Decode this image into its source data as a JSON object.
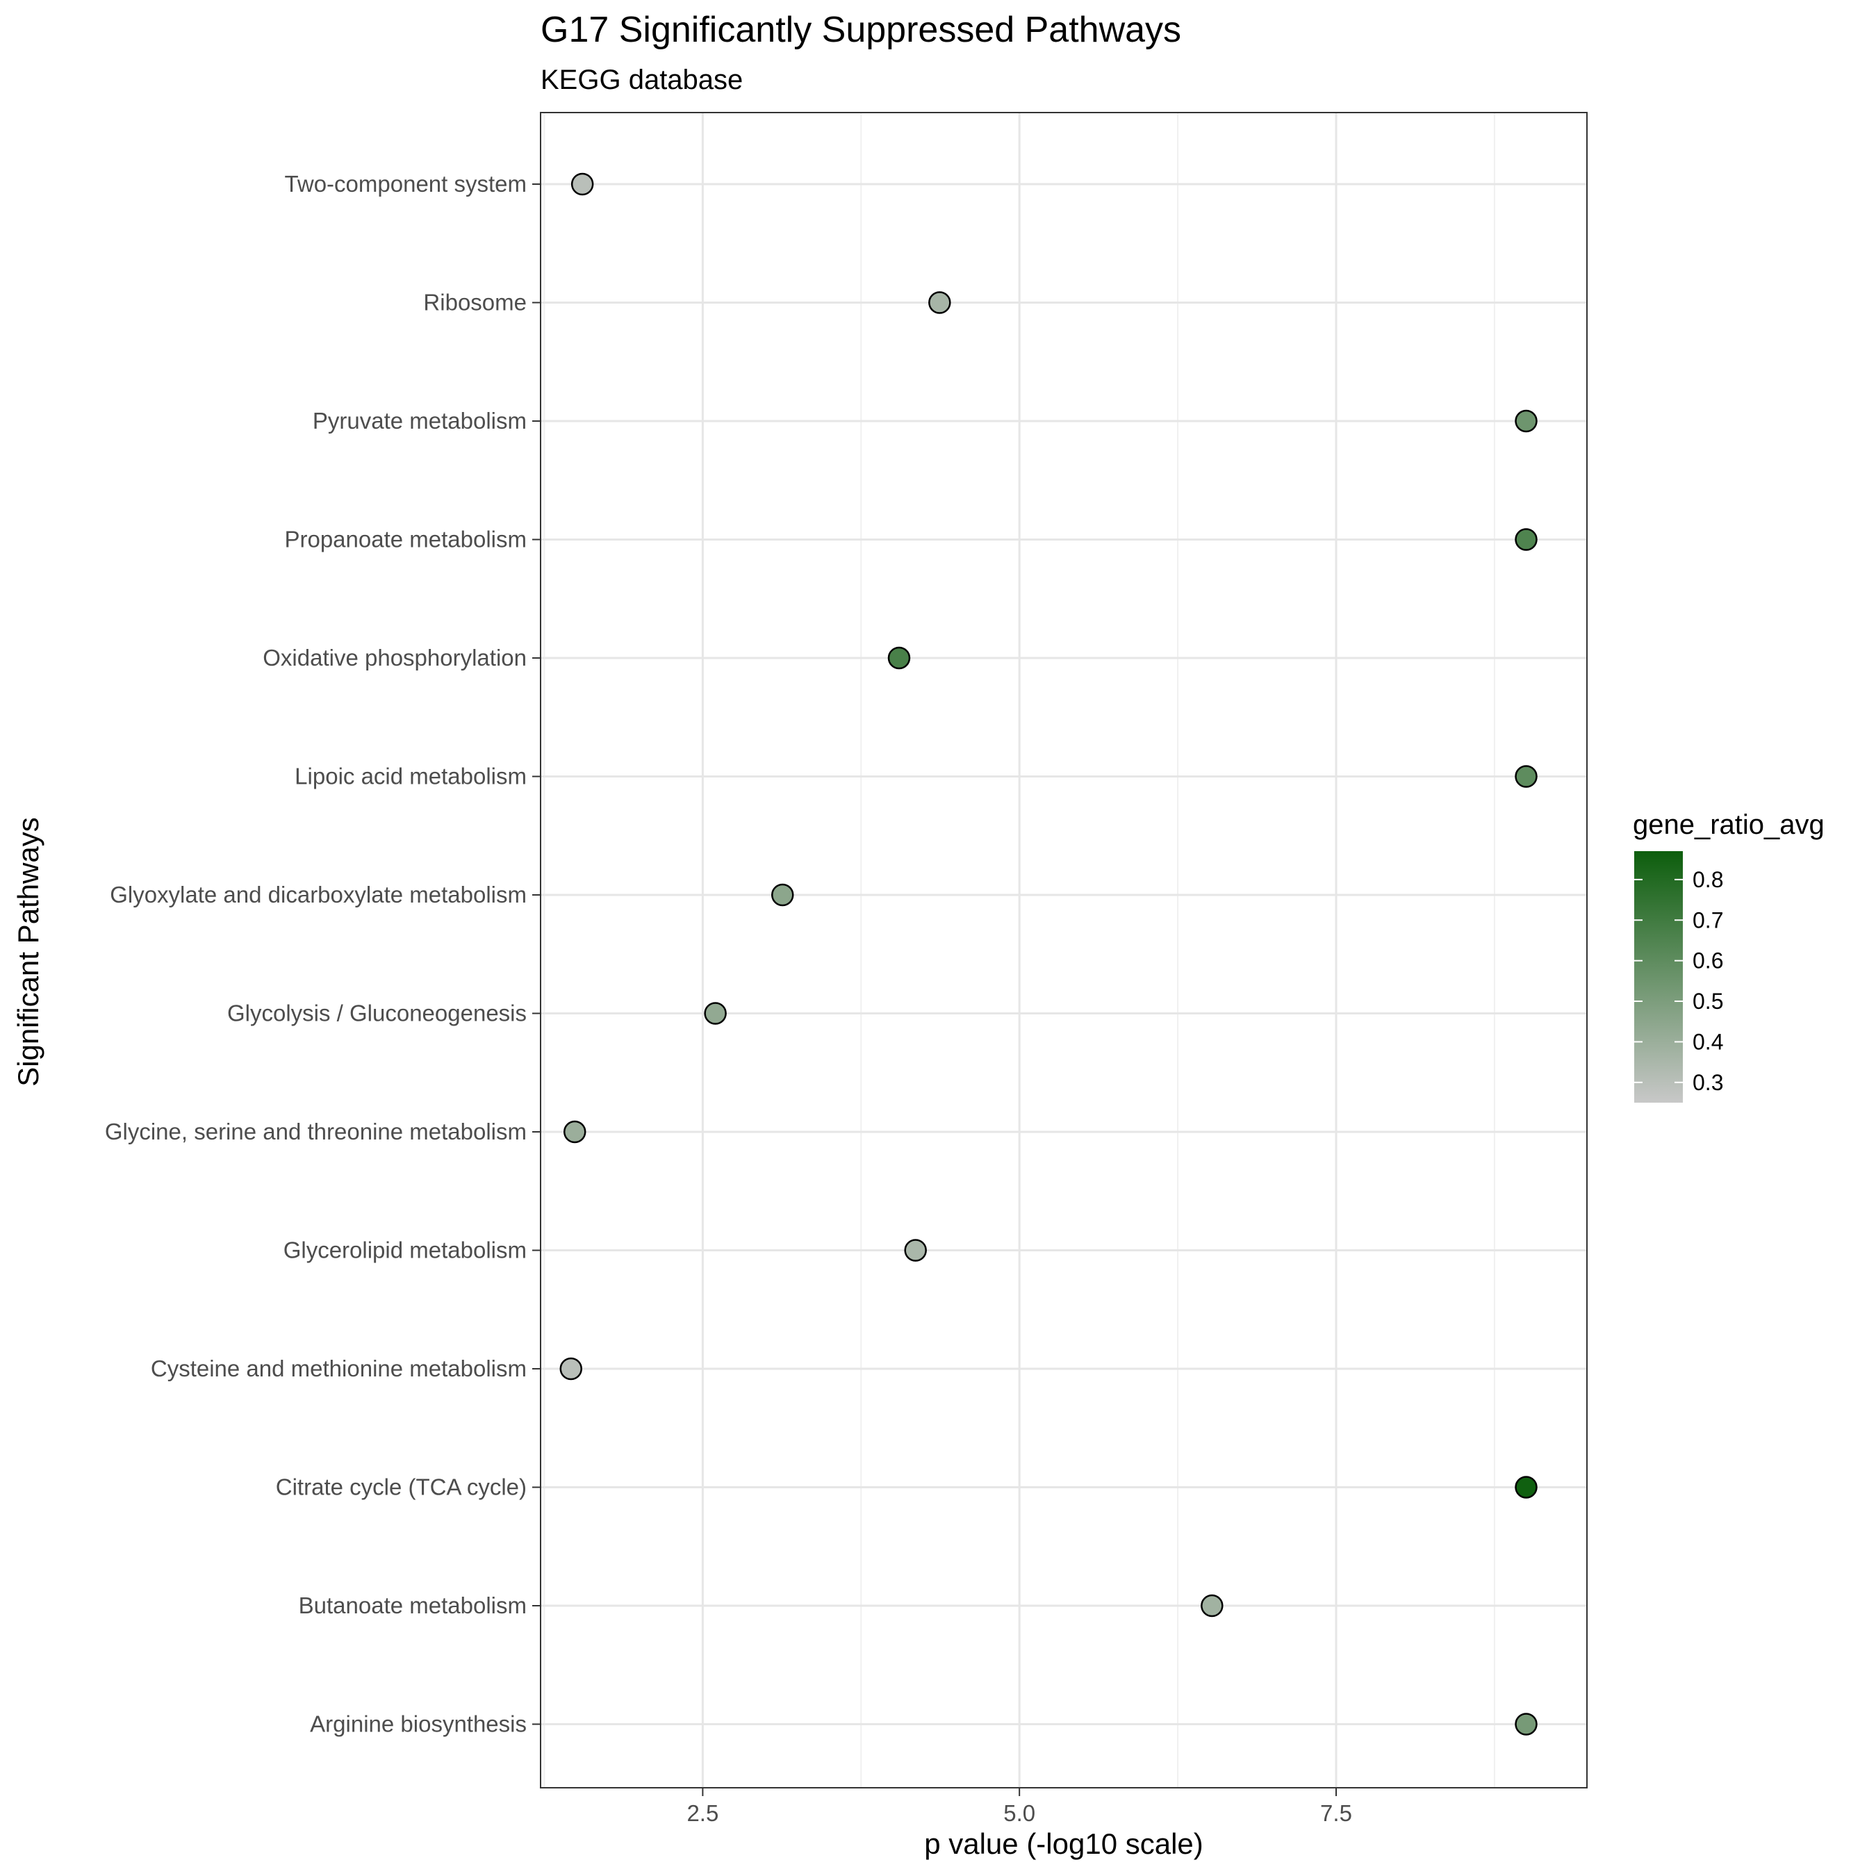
{
  "chart_data": {
    "type": "scatter",
    "title": "G17 Significantly Suppressed Pathways",
    "subtitle": "KEGG database",
    "xlabel": "p value (-log10 scale)",
    "ylabel": "Significant Pathways",
    "xlim": [
      1.22,
      9.48
    ],
    "x_ticks": [
      2.5,
      5.0,
      7.5
    ],
    "x_tick_labels": [
      "2.5",
      "5.0",
      "7.5"
    ],
    "grid": true,
    "categories": [
      "Two-component system",
      "Ribosome",
      "Pyruvate metabolism",
      "Propanoate metabolism",
      "Oxidative phosphorylation",
      "Lipoic acid metabolism",
      "Glyoxylate and dicarboxylate metabolism",
      "Glycolysis / Gluconeogenesis",
      "Glycine, serine and threonine metabolism",
      "Glycerolipid metabolism",
      "Cysteine and methionine metabolism",
      "Citrate cycle (TCA cycle)",
      "Butanoate metabolism",
      "Arginine biosynthesis"
    ],
    "x": [
      1.55,
      4.37,
      9.0,
      9.0,
      4.05,
      9.0,
      3.13,
      2.6,
      1.49,
      4.18,
      1.46,
      9.0,
      6.52,
      9.0
    ],
    "gene_ratio_avg": [
      0.3,
      0.36,
      0.55,
      0.65,
      0.67,
      0.6,
      0.45,
      0.43,
      0.4,
      0.35,
      0.3,
      0.86,
      0.38,
      0.52
    ],
    "color_scale": {
      "title": "gene_ratio_avg",
      "min": 0.25,
      "max": 0.87,
      "low_color": "#c8c8c8",
      "high_color": "#0d5e0d",
      "ticks": [
        0.3,
        0.4,
        0.5,
        0.6,
        0.7,
        0.8
      ],
      "tick_labels": [
        "0.3",
        "0.4",
        "0.5",
        "0.6",
        "0.7",
        "0.8"
      ]
    },
    "legend_position": "right"
  }
}
